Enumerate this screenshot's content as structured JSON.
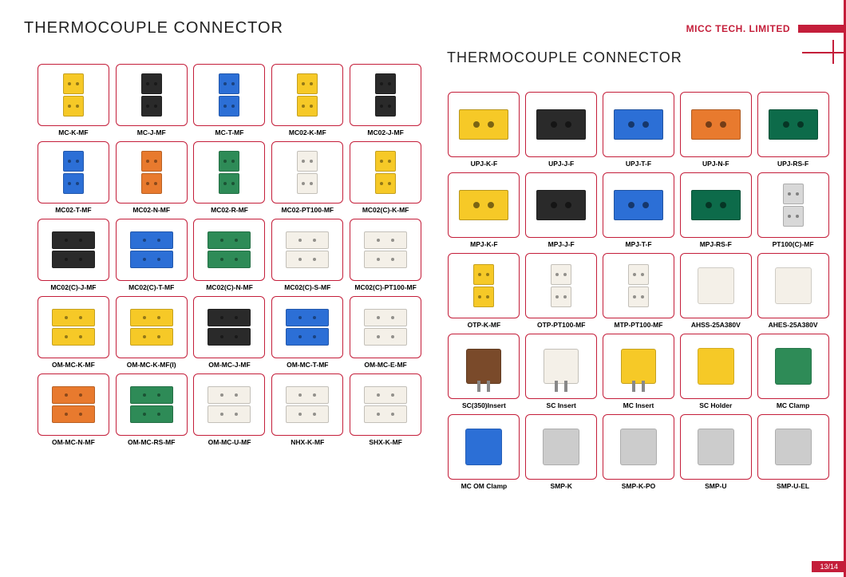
{
  "header": {
    "title_left": "THERMOCOUPLE CONNECTOR",
    "title_right": "THERMOCOUPLE CONNECTOR",
    "company": "MICC TECH.  LIMITED",
    "page_number": "13/14"
  },
  "colors": {
    "border": "#c41e3a",
    "yellow": "#f6c927",
    "black": "#2a2a2a",
    "blue": "#2c6fd6",
    "green": "#2e8b57",
    "white": "#f4f0e8",
    "orange": "#e87a2e",
    "brown": "#7a4a2a",
    "grey": "#cccccc",
    "darkgreen": "#0d6b4a",
    "metal": "#d8d8d8"
  },
  "left_grid": [
    {
      "label": "MC-K-MF",
      "shape": "stack",
      "top": "yellow",
      "bot": "yellow"
    },
    {
      "label": "MC-J-MF",
      "shape": "stack",
      "top": "black",
      "bot": "black"
    },
    {
      "label": "MC-T-MF",
      "shape": "stack",
      "top": "blue",
      "bot": "blue"
    },
    {
      "label": "MC02-K-MF",
      "shape": "stack",
      "top": "yellow",
      "bot": "yellow"
    },
    {
      "label": "MC02-J-MF",
      "shape": "stack",
      "top": "black",
      "bot": "black"
    },
    {
      "label": "MC02-T-MF",
      "shape": "stack",
      "top": "blue",
      "bot": "blue"
    },
    {
      "label": "MC02-N-MF",
      "shape": "stack",
      "top": "orange",
      "bot": "orange"
    },
    {
      "label": "MC02-R-MF",
      "shape": "stack",
      "top": "green",
      "bot": "green"
    },
    {
      "label": "MC02-PT100-MF",
      "shape": "stack",
      "top": "white",
      "bot": "white"
    },
    {
      "label": "MC02(C)-K-MF",
      "shape": "stack",
      "top": "yellow",
      "bot": "yellow"
    },
    {
      "label": "MC02(C)-J-MF",
      "shape": "wide",
      "top": "black",
      "bot": "black"
    },
    {
      "label": "MC02(C)-T-MF",
      "shape": "wide",
      "top": "blue",
      "bot": "blue"
    },
    {
      "label": "MC02(C)-N-MF",
      "shape": "wide",
      "top": "green",
      "bot": "green"
    },
    {
      "label": "MC02(C)-S-MF",
      "shape": "wide",
      "top": "white",
      "bot": "white"
    },
    {
      "label": "MC02(C)-PT100-MF",
      "shape": "wide",
      "top": "white",
      "bot": "white"
    },
    {
      "label": "OM-MC-K-MF",
      "shape": "wide",
      "top": "yellow",
      "bot": "yellow"
    },
    {
      "label": "OM-MC-K-MF(I)",
      "shape": "wide",
      "top": "yellow",
      "bot": "yellow"
    },
    {
      "label": "OM-MC-J-MF",
      "shape": "wide",
      "top": "black",
      "bot": "black"
    },
    {
      "label": "OM-MC-T-MF",
      "shape": "wide",
      "top": "blue",
      "bot": "blue"
    },
    {
      "label": "OM-MC-E-MF",
      "shape": "wide",
      "top": "white",
      "bot": "white"
    },
    {
      "label": "OM-MC-N-MF",
      "shape": "wide",
      "top": "orange",
      "bot": "orange"
    },
    {
      "label": "OM-MC-RS-MF",
      "shape": "wide",
      "top": "green",
      "bot": "green"
    },
    {
      "label": "OM-MC-U-MF",
      "shape": "wide",
      "top": "white",
      "bot": "white"
    },
    {
      "label": "NHX-K-MF",
      "shape": "wide",
      "top": "white",
      "bot": "white"
    },
    {
      "label": "SHX-K-MF",
      "shape": "wide",
      "top": "white",
      "bot": "white"
    }
  ],
  "right_grid": [
    {
      "label": "UPJ-K-F",
      "shape": "single",
      "color": "yellow"
    },
    {
      "label": "UPJ-J-F",
      "shape": "single",
      "color": "black"
    },
    {
      "label": "UPJ-T-F",
      "shape": "single",
      "color": "blue"
    },
    {
      "label": "UPJ-N-F",
      "shape": "single",
      "color": "orange"
    },
    {
      "label": "UPJ-RS-F",
      "shape": "single",
      "color": "darkgreen"
    },
    {
      "label": "MPJ-K-F",
      "shape": "single",
      "color": "yellow"
    },
    {
      "label": "MPJ-J-F",
      "shape": "single",
      "color": "black"
    },
    {
      "label": "MPJ-T-F",
      "shape": "single",
      "color": "blue"
    },
    {
      "label": "MPJ-RS-F",
      "shape": "single",
      "color": "darkgreen"
    },
    {
      "label": "PT100(C)-MF",
      "shape": "stack",
      "top": "metal",
      "bot": "metal"
    },
    {
      "label": "OTP-K-MF",
      "shape": "stack",
      "top": "yellow",
      "bot": "yellow"
    },
    {
      "label": "OTP-PT100-MF",
      "shape": "stack",
      "top": "white",
      "bot": "white"
    },
    {
      "label": "MTP-PT100-MF",
      "shape": "stack",
      "top": "white",
      "bot": "white"
    },
    {
      "label": "AHSS-25A380V",
      "shape": "generic",
      "color": "white"
    },
    {
      "label": "AHES-25A380V",
      "shape": "generic",
      "color": "white"
    },
    {
      "label": "SC(350)Insert",
      "shape": "plug",
      "color": "brown"
    },
    {
      "label": "SC Insert",
      "shape": "plug",
      "color": "white"
    },
    {
      "label": "MC Insert",
      "shape": "plug",
      "color": "yellow"
    },
    {
      "label": "SC Holder",
      "shape": "generic",
      "color": "yellow"
    },
    {
      "label": "MC Clamp",
      "shape": "generic",
      "color": "green"
    },
    {
      "label": "MC OM Clamp",
      "shape": "generic",
      "color": "blue"
    },
    {
      "label": "SMP-K",
      "shape": "generic",
      "color": "grey"
    },
    {
      "label": "SMP-K-PO",
      "shape": "generic",
      "color": "grey"
    },
    {
      "label": "SMP-U",
      "shape": "generic",
      "color": "grey"
    },
    {
      "label": "SMP-U-EL",
      "shape": "generic",
      "color": "grey"
    }
  ]
}
